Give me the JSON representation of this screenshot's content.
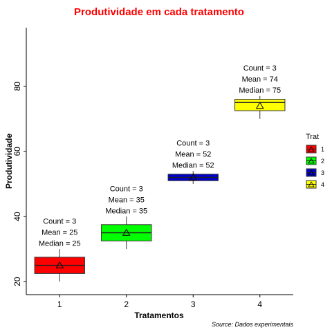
{
  "chart_data": {
    "type": "boxplot",
    "title": "Produtividade em cada tratamento",
    "xlabel": "Tratamentos",
    "ylabel": "Produtividade",
    "caption": "Source: Dados experimentais",
    "categories": [
      "1",
      "2",
      "3",
      "4"
    ],
    "ylim": [
      16,
      98
    ],
    "yticks": [
      "20",
      "40",
      "60",
      "80"
    ],
    "grid": false,
    "legend": {
      "title": "Trat",
      "position": "right",
      "entries": [
        "1",
        "2",
        "3",
        "4"
      ]
    },
    "colors": [
      "#ff0000",
      "#00ff00",
      "#0000cc",
      "#ffff00"
    ],
    "boxes": [
      {
        "category": "1",
        "min": 20,
        "q1": 22.5,
        "median": 25,
        "q3": 27.5,
        "max": 30,
        "mean": 25
      },
      {
        "category": "2",
        "min": 30,
        "q1": 32.5,
        "median": 35,
        "q3": 37.5,
        "max": 40,
        "mean": 35
      },
      {
        "category": "3",
        "min": 50,
        "q1": 51,
        "median": 52,
        "q3": 53,
        "max": 54,
        "mean": 52
      },
      {
        "category": "4",
        "min": 70,
        "q1": 72.5,
        "median": 75,
        "q3": 76,
        "max": 77,
        "mean": 74
      }
    ],
    "annotations": [
      {
        "category": "1",
        "y": 31,
        "lines": [
          "Count = 3",
          "Mean = 25",
          "Median = 25"
        ]
      },
      {
        "category": "2",
        "y": 41,
        "lines": [
          "Count = 3",
          "Mean = 35",
          "Median = 35"
        ]
      },
      {
        "category": "3",
        "y": 55,
        "lines": [
          "Count = 3",
          "Mean = 52",
          "Median = 52"
        ]
      },
      {
        "category": "4",
        "y": 78,
        "lines": [
          "Count = 3",
          "Mean = 74",
          "Median = 75"
        ]
      }
    ]
  }
}
